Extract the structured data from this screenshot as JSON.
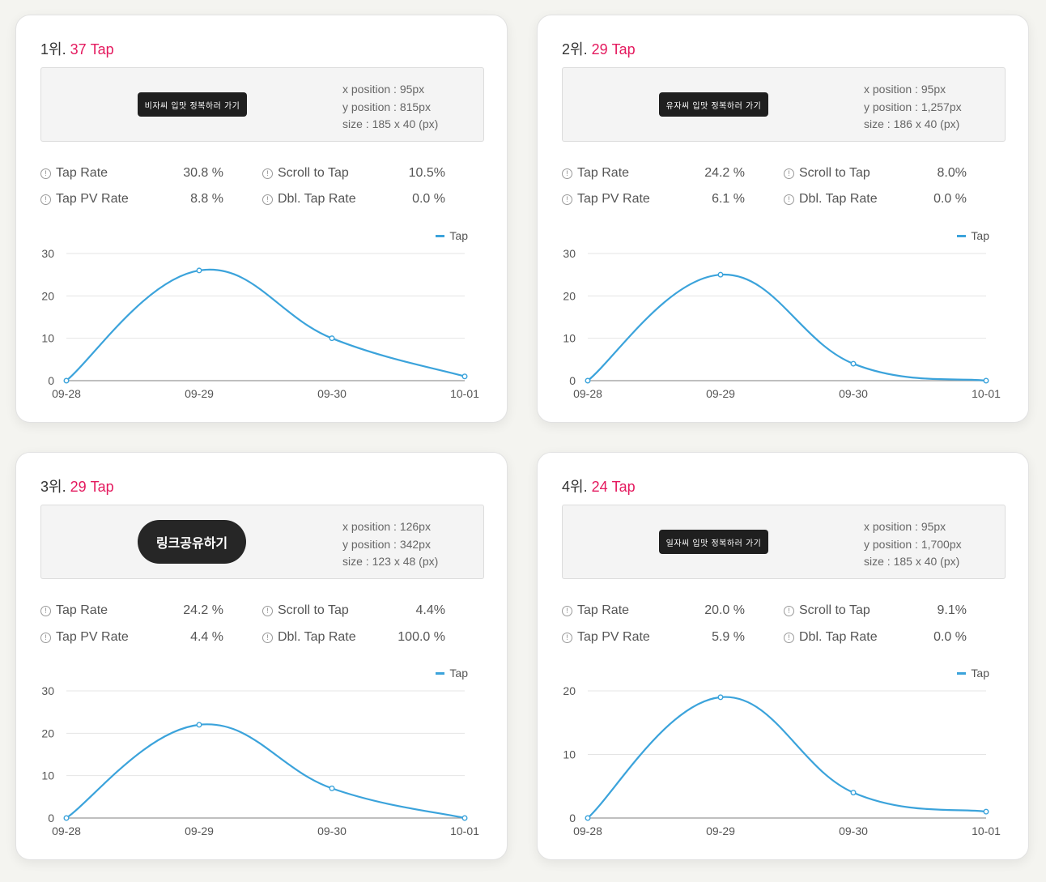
{
  "cards": [
    {
      "rank": "1위",
      "sep": ". ",
      "count": "37 Tap",
      "button_text": "비자씨 입맛 정복하러 가기",
      "button_style": "small",
      "x_position": "x position : 95px",
      "y_position": "y position : 815px",
      "size": "size : 185 x 40 (px)",
      "tap_rate_label": "Tap Rate",
      "tap_rate": "30.8 %",
      "scroll_label": "Scroll to Tap",
      "scroll": "10.5%",
      "pv_label": "Tap PV Rate",
      "pv": "8.8 %",
      "dbl_label": "Dbl. Tap Rate",
      "dbl": "0.0 %",
      "legend": "Tap"
    },
    {
      "rank": "2위",
      "sep": ". ",
      "count": "29 Tap",
      "button_text": "유자씨 입맛 정복하러 가기",
      "button_style": "small",
      "x_position": "x position : 95px",
      "y_position": "y position : 1,257px",
      "size": "size : 186 x 40 (px)",
      "tap_rate_label": "Tap Rate",
      "tap_rate": "24.2 %",
      "scroll_label": "Scroll to Tap",
      "scroll": "8.0%",
      "pv_label": "Tap PV Rate",
      "pv": "6.1 %",
      "dbl_label": "Dbl. Tap Rate",
      "dbl": "0.0 %",
      "legend": "Tap"
    },
    {
      "rank": "3위",
      "sep": ". ",
      "count": "29 Tap",
      "button_text": "링크공유하기",
      "button_style": "round",
      "x_position": "x position : 126px",
      "y_position": "y position : 342px",
      "size": "size : 123 x 48 (px)",
      "tap_rate_label": "Tap Rate",
      "tap_rate": "24.2 %",
      "scroll_label": "Scroll to Tap",
      "scroll": "4.4%",
      "pv_label": "Tap PV Rate",
      "pv": "4.4 %",
      "dbl_label": "Dbl. Tap Rate",
      "dbl": "100.0 %",
      "legend": "Tap"
    },
    {
      "rank": "4위",
      "sep": ". ",
      "count": "24 Tap",
      "button_text": "일자씨 입맛 정복하러 가기",
      "button_style": "small",
      "x_position": "x position : 95px",
      "y_position": "y position : 1,700px",
      "size": "size : 185 x 40 (px)",
      "tap_rate_label": "Tap Rate",
      "tap_rate": "20.0 %",
      "scroll_label": "Scroll to Tap",
      "scroll": "9.1%",
      "pv_label": "Tap PV Rate",
      "pv": "5.9 %",
      "dbl_label": "Dbl. Tap Rate",
      "dbl": "0.0 %",
      "legend": "Tap"
    }
  ],
  "chart_data": [
    {
      "type": "line",
      "categories": [
        "09-28",
        "09-29",
        "09-30",
        "10-01"
      ],
      "series": [
        {
          "name": "Tap",
          "values": [
            0,
            26,
            10,
            1
          ]
        }
      ],
      "ylim": [
        0,
        30
      ],
      "yticks": [
        0,
        10,
        20,
        30
      ],
      "color": "#3ba3db"
    },
    {
      "type": "line",
      "categories": [
        "09-28",
        "09-29",
        "09-30",
        "10-01"
      ],
      "series": [
        {
          "name": "Tap",
          "values": [
            0,
            25,
            4,
            0
          ]
        }
      ],
      "ylim": [
        0,
        30
      ],
      "yticks": [
        0,
        10,
        20,
        30
      ],
      "color": "#3ba3db"
    },
    {
      "type": "line",
      "categories": [
        "09-28",
        "09-29",
        "09-30",
        "10-01"
      ],
      "series": [
        {
          "name": "Tap",
          "values": [
            0,
            22,
            7,
            0
          ]
        }
      ],
      "ylim": [
        0,
        30
      ],
      "yticks": [
        0,
        10,
        20,
        30
      ],
      "color": "#3ba3db"
    },
    {
      "type": "line",
      "categories": [
        "09-28",
        "09-29",
        "09-30",
        "10-01"
      ],
      "series": [
        {
          "name": "Tap",
          "values": [
            0,
            19,
            4,
            1
          ]
        }
      ],
      "ylim": [
        0,
        20
      ],
      "yticks": [
        0,
        10,
        20
      ],
      "color": "#3ba3db"
    }
  ]
}
